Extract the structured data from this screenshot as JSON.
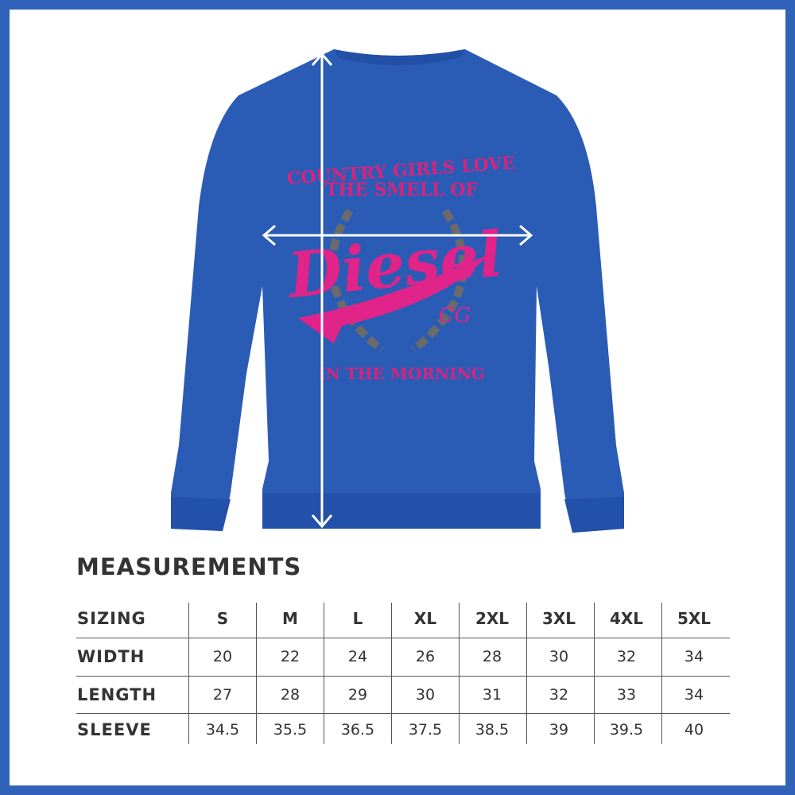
{
  "graphic": {
    "line1": "COUNTRY GIRLS LOVE",
    "line2": "THE SMELL OF",
    "logo": "Diesel",
    "monogram": "CG",
    "line3": "IN THE MORNING"
  },
  "heading": "MEASUREMENTS",
  "table": {
    "header": [
      "SIZING",
      "S",
      "M",
      "L",
      "XL",
      "2XL",
      "3XL",
      "4XL",
      "5XL"
    ],
    "rows": [
      [
        "WIDTH",
        20,
        22,
        24,
        26,
        28,
        30,
        32,
        34
      ],
      [
        "LENGTH",
        27,
        28,
        29,
        30,
        31,
        32,
        33,
        34
      ],
      [
        "SLEEVE",
        34.5,
        35.5,
        36.5,
        37.5,
        38.5,
        39,
        39.5,
        40
      ]
    ]
  }
}
